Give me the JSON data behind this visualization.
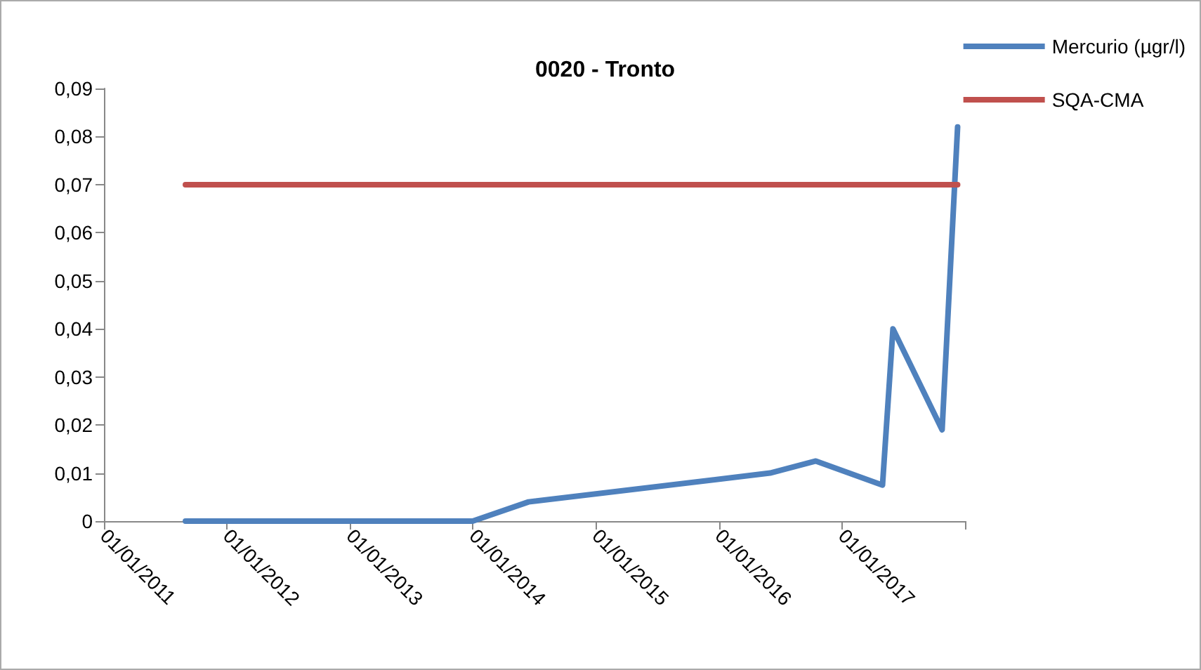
{
  "chart_data": {
    "type": "line",
    "title": "0020 - Tronto",
    "series": [
      {
        "name": "Mercurio (µgr/l)",
        "color": "#4f81bd",
        "x": [
          "2011-08-31",
          "2013-12-31",
          "2014-06-15",
          "2016-06-01",
          "2016-10-15",
          "2017-05-01",
          "2017-06-01",
          "2017-10-25",
          "2017-12-10"
        ],
        "values": [
          0,
          0,
          0.004,
          0.01,
          0.0125,
          0.0075,
          0.04,
          0.019,
          0.082
        ]
      },
      {
        "name": "SQA-CMA",
        "color": "#c0504d",
        "x": [
          "2011-08-31",
          "2017-12-10"
        ],
        "values": [
          0.07,
          0.07
        ]
      }
    ],
    "xlim": [
      "2011-01-01",
      "2018-01-01"
    ],
    "xticks": [
      {
        "value": "2011-01-01",
        "label": "01/01/2011"
      },
      {
        "value": "2012-01-01",
        "label": "01/01/2012"
      },
      {
        "value": "2013-01-01",
        "label": "01/01/2013"
      },
      {
        "value": "2014-01-01",
        "label": "01/01/2014"
      },
      {
        "value": "2015-01-01",
        "label": "01/01/2015"
      },
      {
        "value": "2016-01-01",
        "label": "01/01/2016"
      },
      {
        "value": "2017-01-01",
        "label": "01/01/2017"
      },
      {
        "value": "2018-01-01",
        "label": null
      }
    ],
    "ylim": [
      0,
      0.09
    ],
    "yticks": [
      {
        "value": 0,
        "label": "0"
      },
      {
        "value": 0.01,
        "label": "0,01"
      },
      {
        "value": 0.02,
        "label": "0,02"
      },
      {
        "value": 0.03,
        "label": "0,03"
      },
      {
        "value": 0.04,
        "label": "0,04"
      },
      {
        "value": 0.05,
        "label": "0,05"
      },
      {
        "value": 0.06,
        "label": "0,06"
      },
      {
        "value": 0.07,
        "label": "0,07"
      },
      {
        "value": 0.08,
        "label": "0,08"
      },
      {
        "value": 0.09,
        "label": "0,09"
      }
    ],
    "grid": false,
    "legend": "top right",
    "marker": "none",
    "line_style": "solid"
  }
}
